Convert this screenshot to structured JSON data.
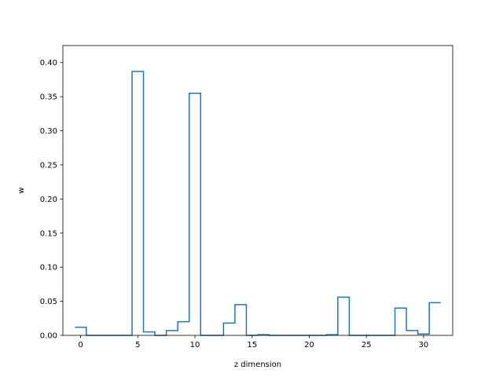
{
  "chart_data": {
    "type": "step",
    "title": "",
    "xlabel": "z dimension",
    "ylabel": "w",
    "xlim": [
      -1.55,
      32.55
    ],
    "ylim": [
      0.0,
      0.425
    ],
    "xticks": [
      0,
      5,
      10,
      15,
      20,
      25,
      30
    ],
    "yticks": [
      0.0,
      0.05,
      0.1,
      0.15,
      0.2,
      0.25,
      0.3,
      0.35,
      0.4
    ],
    "ytick_labels": [
      "0.00",
      "0.05",
      "0.10",
      "0.15",
      "0.20",
      "0.25",
      "0.30",
      "0.35",
      "0.40"
    ],
    "xtick_labels": [
      "0",
      "5",
      "10",
      "15",
      "20",
      "25",
      "30"
    ],
    "grid": false,
    "series": [
      {
        "color": "#1f77b4",
        "x": [
          0,
          1,
          2,
          3,
          4,
          5,
          6,
          7,
          8,
          9,
          10,
          11,
          12,
          13,
          14,
          15,
          16,
          17,
          18,
          19,
          20,
          21,
          22,
          23,
          24,
          25,
          26,
          27,
          28,
          29,
          30,
          31
        ],
        "values": [
          0.012,
          0.0,
          0.0,
          0.0,
          0.0,
          0.387,
          0.005,
          0.0,
          0.007,
          0.02,
          0.355,
          0.0,
          0.0,
          0.018,
          0.045,
          0.0,
          0.001,
          0.0,
          0.0,
          0.0,
          0.0,
          0.0,
          0.001,
          0.056,
          0.0,
          0.0,
          0.0,
          0.0,
          0.04,
          0.007,
          0.002,
          0.048
        ]
      }
    ]
  }
}
